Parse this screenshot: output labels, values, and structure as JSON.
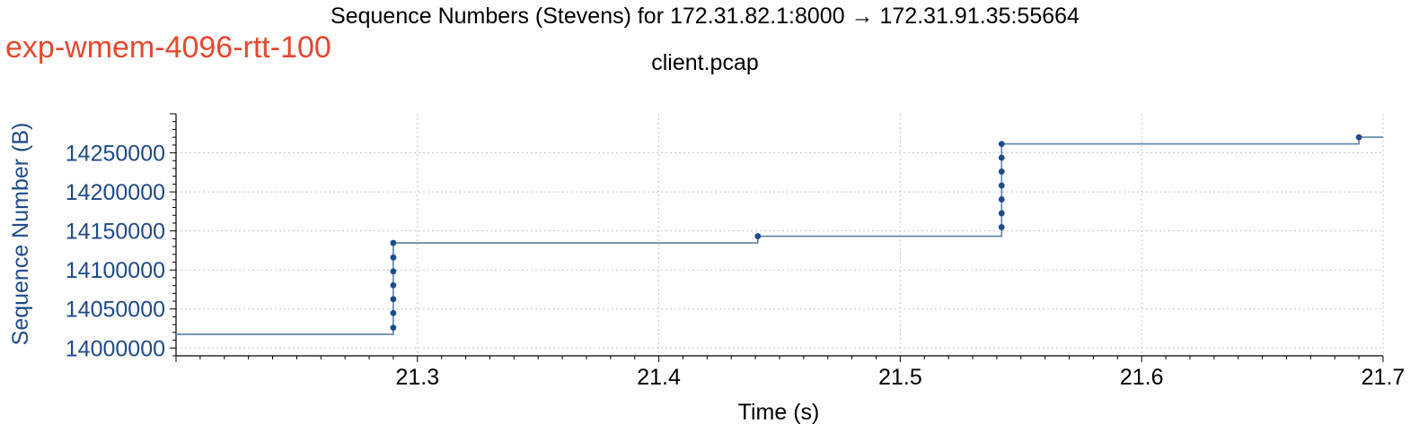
{
  "header": {
    "title": "Sequence Numbers (Stevens) for 172.31.82.1:8000 → 172.31.91.35:55664",
    "subtitle": "client.pcap",
    "experiment_label": "exp-wmem-4096-rtt-100"
  },
  "colors": {
    "series": "#5a80a8",
    "points": "#1f4a8a",
    "experiment_label": "#e8472f",
    "grid": "#c8c8c8"
  },
  "chart_data": {
    "type": "line",
    "title": "Sequence Numbers (Stevens) for 172.31.82.1:8000 → 172.31.91.35:55664",
    "subtitle": "client.pcap",
    "xlabel": "Time (s)",
    "ylabel": "Sequence Number (B)",
    "xlim": [
      21.2,
      21.7
    ],
    "ylim": [
      13990000,
      14300000
    ],
    "grid": true,
    "x_ticks": [
      {
        "value": 21.3,
        "label": "21.3"
      },
      {
        "value": 21.4,
        "label": "21.4"
      },
      {
        "value": 21.5,
        "label": "21.5"
      },
      {
        "value": 21.6,
        "label": "21.6"
      },
      {
        "value": 21.7,
        "label": "21.7"
      }
    ],
    "y_ticks": [
      {
        "value": 14000000,
        "label": "14000000"
      },
      {
        "value": 14050000,
        "label": "14050000"
      },
      {
        "value": 14100000,
        "label": "14100000"
      },
      {
        "value": 14150000,
        "label": "14150000"
      },
      {
        "value": 14200000,
        "label": "14200000"
      },
      {
        "value": 14250000,
        "label": "14250000"
      }
    ],
    "step_line": [
      [
        21.2,
        14017400
      ],
      [
        21.29,
        14017400
      ],
      [
        21.29,
        14134600
      ],
      [
        21.441,
        14134600
      ],
      [
        21.441,
        14143200
      ],
      [
        21.542,
        14143200
      ],
      [
        21.542,
        14261400
      ],
      [
        21.69,
        14261400
      ],
      [
        21.69,
        14270000
      ],
      [
        21.7,
        14270000
      ]
    ],
    "points": [
      [
        21.29,
        14026000
      ],
      [
        21.29,
        14044800
      ],
      [
        21.29,
        14062600
      ],
      [
        21.29,
        14080400
      ],
      [
        21.29,
        14098200
      ],
      [
        21.29,
        14116000
      ],
      [
        21.29,
        14134600
      ],
      [
        21.441,
        14143200
      ],
      [
        21.542,
        14154800
      ],
      [
        21.542,
        14172600
      ],
      [
        21.542,
        14190400
      ],
      [
        21.542,
        14208200
      ],
      [
        21.542,
        14226000
      ],
      [
        21.542,
        14243800
      ],
      [
        21.542,
        14261400
      ],
      [
        21.69,
        14270000
      ]
    ]
  }
}
